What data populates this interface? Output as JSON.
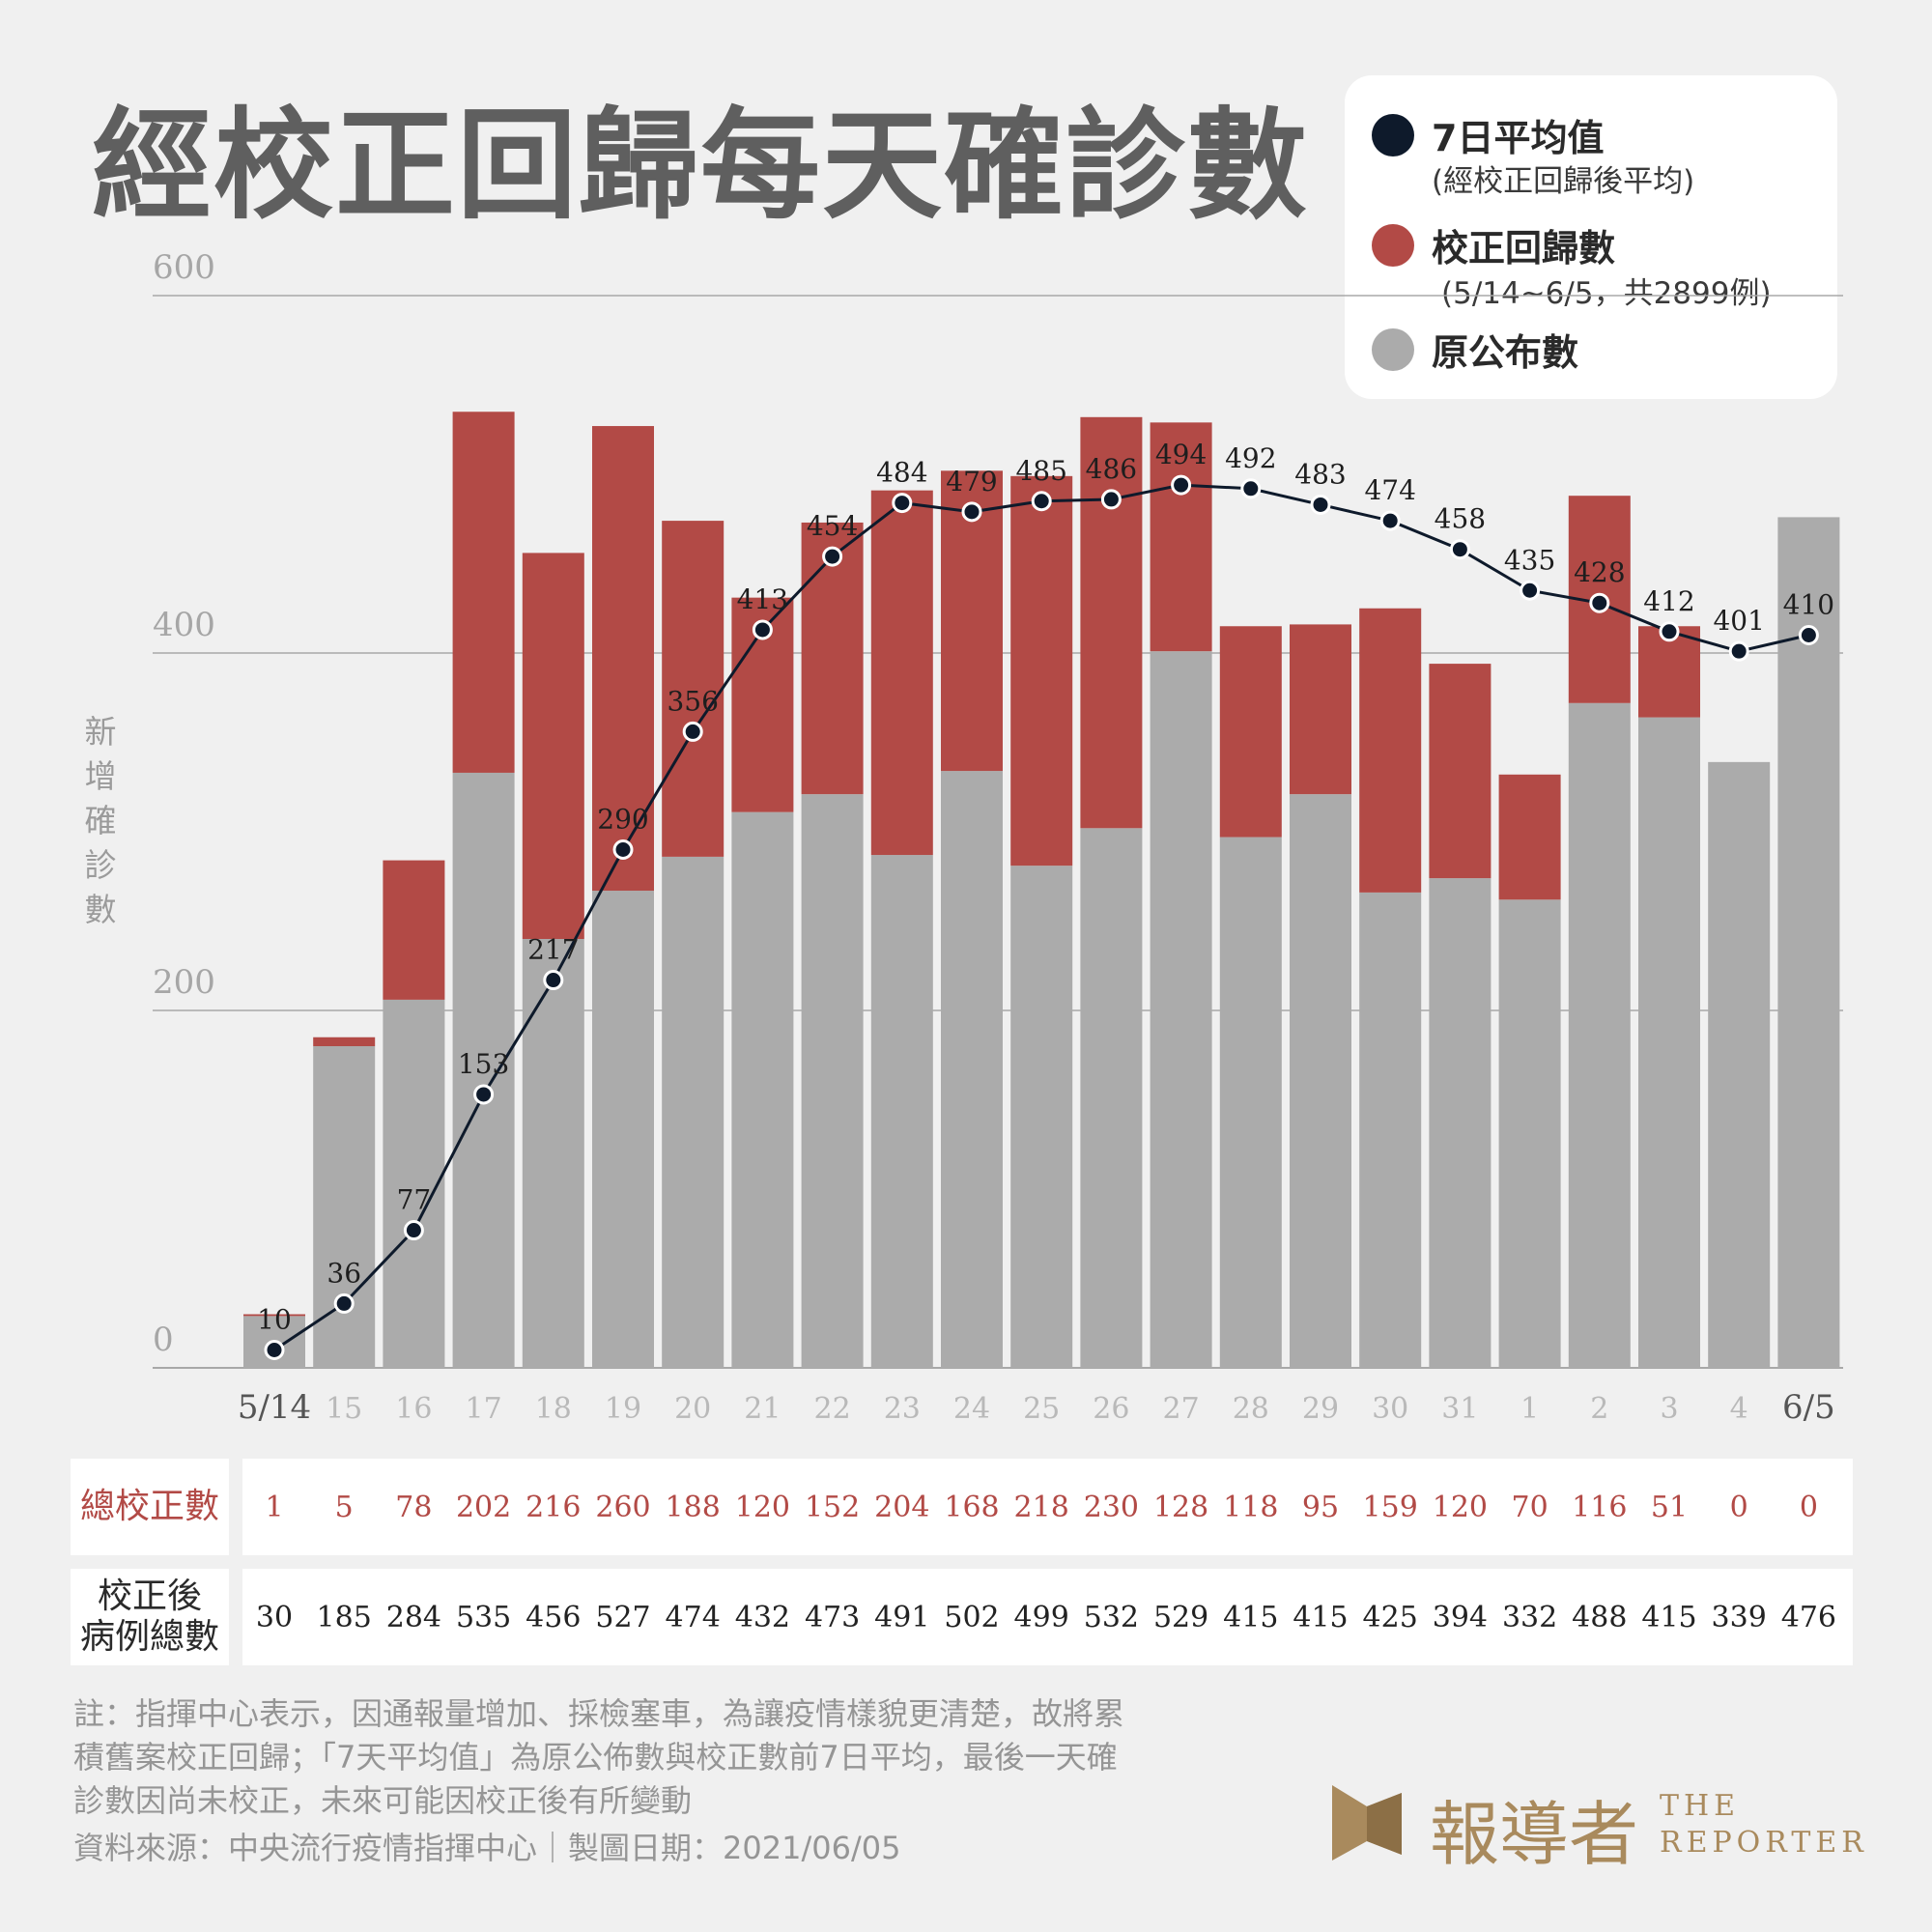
{
  "title": "經校正回歸每天確診數",
  "legend": {
    "items": [
      {
        "label": "7日平均值",
        "sub": "(經校正回歸後平均)",
        "color": "#0e1a2b"
      },
      {
        "label": "校正回歸數",
        "sub": "(5/14~6/5，共2899例)",
        "color": "#b24a46"
      },
      {
        "label": "原公布數",
        "sub": "",
        "color": "#ababab"
      }
    ]
  },
  "colors": {
    "original": "#ababab",
    "correction": "#b24a46",
    "average": "#0e1a2b",
    "grid": "#a8a8a8",
    "axis_text": "#a6a6a6"
  },
  "table": {
    "row1_header": "總校正數",
    "row2_header": [
      "校正後",
      "病例總數"
    ]
  },
  "notes": [
    "註：指揮中心表示，因通報量增加、採檢塞車，為讓疫情樣貌更清楚，故將累",
    "積舊案校正回歸；「7天平均值」為原公佈數與校正數前7日平均，最後一天確",
    "診數因尚未校正，未來可能因校正後有所變動",
    "資料來源：中央流行疫情指揮中心｜製圖日期：2021/06/05"
  ],
  "brand": {
    "zh": "報導者",
    "en_top": "THE",
    "en_bottom": "REPORTER"
  },
  "chart_data": {
    "type": "bar",
    "stacked": true,
    "ylabel": "新增確診數",
    "ylim": [
      0,
      600
    ],
    "yticks": [
      0,
      200,
      400,
      600
    ],
    "grid": true,
    "legend_position": "top-right",
    "categories": [
      "5/14",
      "15",
      "16",
      "17",
      "18",
      "19",
      "20",
      "21",
      "22",
      "23",
      "24",
      "25",
      "26",
      "27",
      "28",
      "29",
      "30",
      "31",
      "1",
      "2",
      "3",
      "4",
      "6/5"
    ],
    "highlight_categories": [
      "5/14",
      "6/5"
    ],
    "series": [
      {
        "name": "原公布數",
        "values": [
          29,
          180,
          206,
          333,
          240,
          267,
          286,
          311,
          321,
          287,
          334,
          281,
          302,
          401,
          297,
          321,
          266,
          274,
          262,
          372,
          364,
          339,
          476
        ]
      },
      {
        "name": "校正回歸數",
        "values": [
          1,
          5,
          78,
          202,
          216,
          260,
          188,
          120,
          152,
          204,
          168,
          218,
          230,
          128,
          118,
          95,
          159,
          120,
          70,
          116,
          51,
          0,
          0
        ]
      },
      {
        "name": "7日平均值",
        "type": "line",
        "values": [
          10,
          36,
          77,
          153,
          217,
          290,
          356,
          413,
          454,
          484,
          479,
          485,
          486,
          494,
          492,
          483,
          474,
          458,
          435,
          428,
          412,
          401,
          410
        ]
      }
    ],
    "total_correction": [
      1,
      5,
      78,
      202,
      216,
      260,
      188,
      120,
      152,
      204,
      168,
      218,
      230,
      128,
      118,
      95,
      159,
      120,
      70,
      116,
      51,
      0,
      0
    ],
    "total_after_correction": [
      30,
      185,
      284,
      535,
      456,
      527,
      474,
      432,
      473,
      491,
      502,
      499,
      532,
      529,
      415,
      415,
      425,
      394,
      332,
      488,
      415,
      339,
      476
    ]
  }
}
